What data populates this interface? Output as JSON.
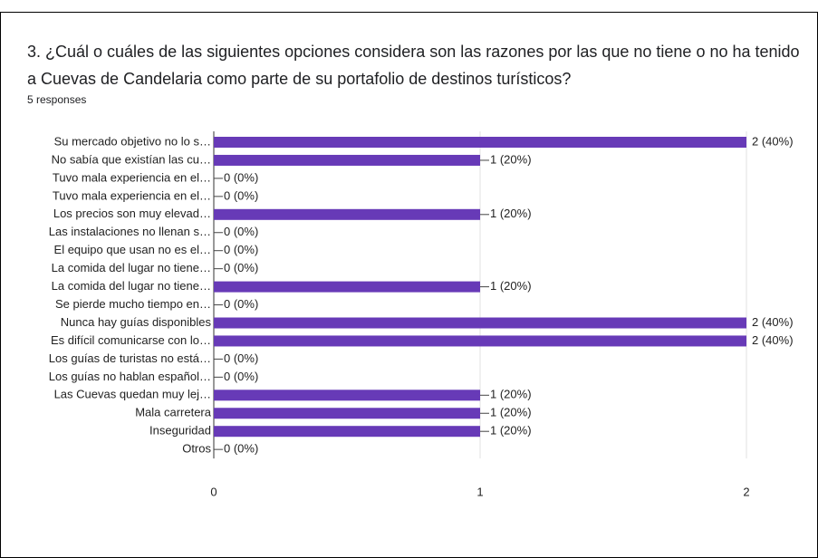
{
  "chart_data": {
    "type": "barh",
    "title": "3. ¿Cuál o cuáles de las siguientes opciones considera son las razones por las que no tiene o no ha tenido a Cuevas de Candelaria como parte de su portafolio de destinos turísticos?",
    "subtitle": "5 responses",
    "categories": [
      "Su mercado objetivo no lo s…",
      "No sabía que existían las cu…",
      "Tuvo mala experiencia en el…",
      "Tuvo mala experiencia en el…",
      "Los precios son muy elevad…",
      "Las instalaciones no llenan s…",
      "El equipo que usan no es el…",
      "La comida del lugar no tiene…",
      "La comida del lugar no tiene…",
      "Se pierde mucho tiempo en…",
      "Nunca hay guías disponibles",
      "Es difícil comunicarse con lo…",
      "Los guías de turistas no está…",
      "Los guías no hablan español…",
      "Las Cuevas quedan muy lej…",
      "Mala carretera",
      "Inseguridad",
      "Otros"
    ],
    "values": [
      2,
      1,
      0,
      0,
      1,
      0,
      0,
      0,
      1,
      0,
      2,
      2,
      0,
      0,
      1,
      1,
      1,
      0
    ],
    "value_labels": [
      "2 (40%)",
      "1 (20%)",
      "0 (0%)",
      "0 (0%)",
      "1 (20%)",
      "0 (0%)",
      "0 (0%)",
      "0 (0%)",
      "1 (20%)",
      "0 (0%)",
      "2 (40%)",
      "2 (40%)",
      "0 (0%)",
      "0 (0%)",
      "1 (20%)",
      "1 (20%)",
      "1 (20%)",
      "0 (0%)"
    ],
    "color": "#673ab7",
    "xlim": [
      0,
      2
    ],
    "xticks": [
      0,
      1,
      2
    ],
    "grid": true
  }
}
